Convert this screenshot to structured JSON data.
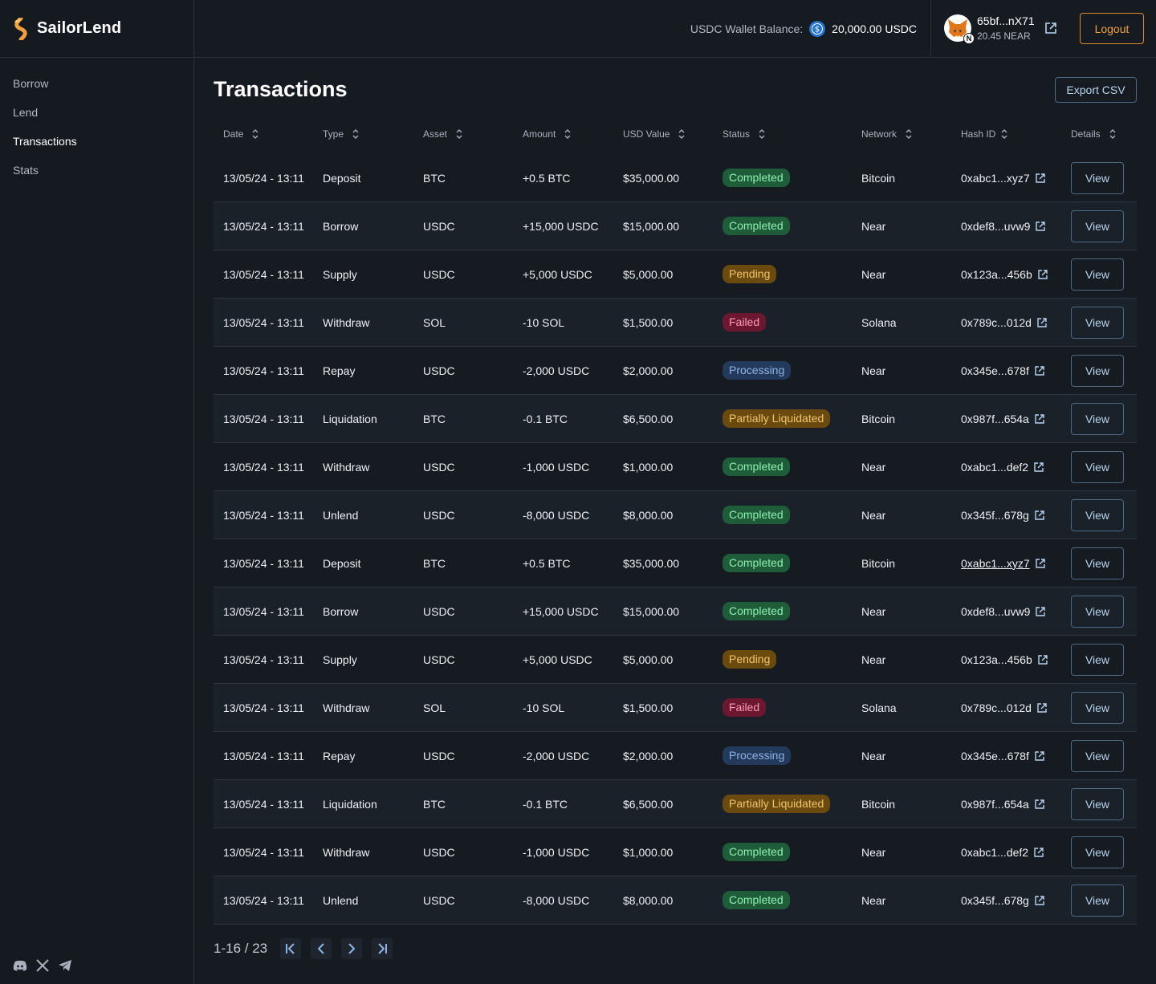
{
  "brand": {
    "name": "SailorLend"
  },
  "nav": {
    "items": [
      {
        "label": "Borrow",
        "active": false
      },
      {
        "label": "Lend",
        "active": false
      },
      {
        "label": "Transactions",
        "active": true
      },
      {
        "label": "Stats",
        "active": false
      }
    ]
  },
  "socials": {
    "icons": [
      "discord-icon",
      "x-icon",
      "telegram-icon"
    ]
  },
  "topbar": {
    "wallet_label": "USDC Wallet Balance:",
    "wallet_value": "20,000.00 USDC",
    "account_address": "65bf...nX71",
    "account_balance": "20.45 NEAR",
    "near_badge": "N",
    "logout_label": "Logout"
  },
  "page": {
    "title": "Transactions",
    "export_label": "Export CSV"
  },
  "table": {
    "headers": [
      "Date",
      "Type",
      "Asset",
      "Amount",
      "USD Value",
      "Status",
      "Network",
      "Hash ID",
      "Details"
    ],
    "view_label": "View",
    "rows": [
      {
        "date": "13/05/24 - 13:11",
        "type": "Deposit",
        "asset": "BTC",
        "amount": "+0.5 BTC",
        "usd": "$35,000.00",
        "status": "Completed",
        "status_kind": "completed",
        "network": "Bitcoin",
        "hash": "0xabc1...xyz7"
      },
      {
        "date": "13/05/24 - 13:11",
        "type": "Borrow",
        "asset": "USDC",
        "amount": "+15,000 USDC",
        "usd": "$15,000.00",
        "status": "Completed",
        "status_kind": "completed",
        "network": "Near",
        "hash": "0xdef8...uvw9"
      },
      {
        "date": "13/05/24 - 13:11",
        "type": "Supply",
        "asset": "USDC",
        "amount": "+5,000 USDC",
        "usd": "$5,000.00",
        "status": "Pending",
        "status_kind": "pending",
        "network": "Near",
        "hash": "0x123a...456b"
      },
      {
        "date": "13/05/24 - 13:11",
        "type": "Withdraw",
        "asset": "SOL",
        "amount": "-10 SOL",
        "usd": "$1,500.00",
        "status": "Failed",
        "status_kind": "failed",
        "network": "Solana",
        "hash": "0x789c...012d"
      },
      {
        "date": "13/05/24 - 13:11",
        "type": "Repay",
        "asset": "USDC",
        "amount": "-2,000 USDC",
        "usd": "$2,000.00",
        "status": "Processing",
        "status_kind": "processing",
        "network": "Near",
        "hash": "0x345e...678f"
      },
      {
        "date": "13/05/24 - 13:11",
        "type": "Liquidation",
        "asset": "BTC",
        "amount": "-0.1 BTC",
        "usd": "$6,500.00",
        "status": "Partially Liquidated",
        "status_kind": "partial",
        "network": "Bitcoin",
        "hash": "0x987f...654a"
      },
      {
        "date": "13/05/24 - 13:11",
        "type": "Withdraw",
        "asset": "USDC",
        "amount": "-1,000 USDC",
        "usd": "$1,000.00",
        "status": "Completed",
        "status_kind": "completed",
        "network": "Near",
        "hash": "0xabc1...def2"
      },
      {
        "date": "13/05/24 - 13:11",
        "type": "Unlend",
        "asset": "USDC",
        "amount": "-8,000 USDC",
        "usd": "$8,000.00",
        "status": "Completed",
        "status_kind": "completed",
        "network": "Near",
        "hash": "0x345f...678g"
      },
      {
        "date": "13/05/24 - 13:11",
        "type": "Deposit",
        "asset": "BTC",
        "amount": "+0.5 BTC",
        "usd": "$35,000.00",
        "status": "Completed",
        "status_kind": "completed",
        "network": "Bitcoin",
        "hash": "0xabc1...xyz7",
        "hash_underlined": true
      },
      {
        "date": "13/05/24 - 13:11",
        "type": "Borrow",
        "asset": "USDC",
        "amount": "+15,000 USDC",
        "usd": "$15,000.00",
        "status": "Completed",
        "status_kind": "completed",
        "network": "Near",
        "hash": "0xdef8...uvw9"
      },
      {
        "date": "13/05/24 - 13:11",
        "type": "Supply",
        "asset": "USDC",
        "amount": "+5,000 USDC",
        "usd": "$5,000.00",
        "status": "Pending",
        "status_kind": "pending",
        "network": "Near",
        "hash": "0x123a...456b"
      },
      {
        "date": "13/05/24 - 13:11",
        "type": "Withdraw",
        "asset": "SOL",
        "amount": "-10 SOL",
        "usd": "$1,500.00",
        "status": "Failed",
        "status_kind": "failed",
        "network": "Solana",
        "hash": "0x789c...012d"
      },
      {
        "date": "13/05/24 - 13:11",
        "type": "Repay",
        "asset": "USDC",
        "amount": "-2,000 USDC",
        "usd": "$2,000.00",
        "status": "Processing",
        "status_kind": "processing",
        "network": "Near",
        "hash": "0x345e...678f"
      },
      {
        "date": "13/05/24 - 13:11",
        "type": "Liquidation",
        "asset": "BTC",
        "amount": "-0.1 BTC",
        "usd": "$6,500.00",
        "status": "Partially Liquidated",
        "status_kind": "partial",
        "network": "Bitcoin",
        "hash": "0x987f...654a"
      },
      {
        "date": "13/05/24 - 13:11",
        "type": "Withdraw",
        "asset": "USDC",
        "amount": "-1,000 USDC",
        "usd": "$1,000.00",
        "status": "Completed",
        "status_kind": "completed",
        "network": "Near",
        "hash": "0xabc1...def2"
      },
      {
        "date": "13/05/24 - 13:11",
        "type": "Unlend",
        "asset": "USDC",
        "amount": "-8,000 USDC",
        "usd": "$8,000.00",
        "status": "Completed",
        "status_kind": "completed",
        "network": "Near",
        "hash": "0x345f...678g"
      }
    ]
  },
  "pagination": {
    "info": "1-16 / 23"
  },
  "colors": {
    "background": "#161b22",
    "accent_orange": "#f0a040",
    "link_blue": "#b8d3ee",
    "completed": "#1e5c3a",
    "pending": "#6b4a10",
    "failed": "#6c1730",
    "processing": "#243a5c"
  }
}
